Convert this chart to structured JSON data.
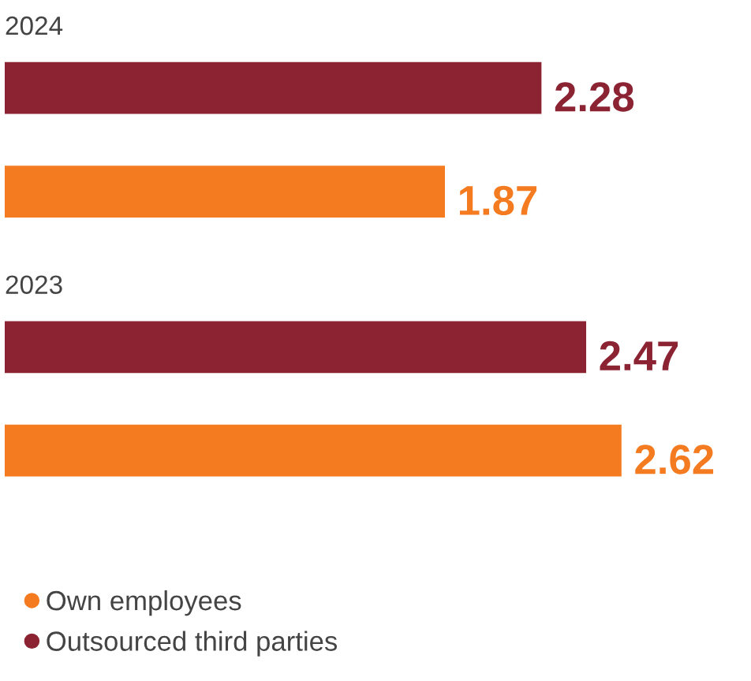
{
  "chart_data": {
    "type": "bar",
    "orientation": "horizontal",
    "categories": [
      "2024",
      "2023"
    ],
    "series": [
      {
        "name": "Outsourced third parties",
        "color": "#8b2332",
        "values": [
          2.28,
          2.47
        ]
      },
      {
        "name": "Own employees",
        "color": "#f47b20",
        "values": [
          1.87,
          2.62
        ]
      }
    ],
    "data_labels": true,
    "legend": "bottom"
  }
}
